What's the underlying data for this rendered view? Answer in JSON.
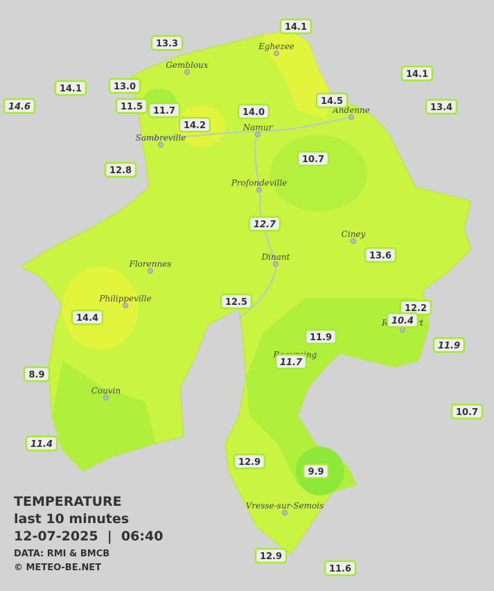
{
  "title": "TEMPERATURE",
  "subtitle": "last 10 minutes",
  "datetime": "12-07-2025  |  06:40",
  "source": "DATA: RMI & BMCB",
  "credit": "© METEO-BE.NET",
  "towns": [
    "Eghezee",
    "Gembloux",
    "Andenne",
    "Namur",
    "Sambreville",
    "Profondeville",
    "Ciney",
    "Dinant",
    "Florennes",
    "Philippeville",
    "Rochefort",
    "Beauraing",
    "Couvin",
    "Vresse-sur-Semois"
  ],
  "stations": [
    {
      "label": "14.1",
      "italic": false
    },
    {
      "label": "13.3",
      "italic": false
    },
    {
      "label": "14.1",
      "italic": false
    },
    {
      "label": "14.1",
      "italic": false
    },
    {
      "label": "13.0",
      "italic": false
    },
    {
      "label": "14.6",
      "italic": true
    },
    {
      "label": "13.4",
      "italic": false
    },
    {
      "label": "14.5",
      "italic": false
    },
    {
      "label": "11.5",
      "italic": false
    },
    {
      "label": "11.7",
      "italic": false
    },
    {
      "label": "14.0",
      "italic": false
    },
    {
      "label": "14.2",
      "italic": false
    },
    {
      "label": "10.7",
      "italic": false
    },
    {
      "label": "12.8",
      "italic": false
    },
    {
      "label": "12.7",
      "italic": true
    },
    {
      "label": "13.6",
      "italic": false
    },
    {
      "label": "12.5",
      "italic": false
    },
    {
      "label": "12.2",
      "italic": false
    },
    {
      "label": "14.4",
      "italic": false
    },
    {
      "label": "10.4",
      "italic": true
    },
    {
      "label": "11.9",
      "italic": false
    },
    {
      "label": "11.9",
      "italic": true
    },
    {
      "label": "11.7",
      "italic": true
    },
    {
      "label": "8.9",
      "italic": false
    },
    {
      "label": "10.7",
      "italic": false
    },
    {
      "label": "11.4",
      "italic": true
    },
    {
      "label": "12.9",
      "italic": false
    },
    {
      "label": "9.9",
      "italic": false
    },
    {
      "label": "12.9",
      "italic": false
    },
    {
      "label": "11.6",
      "italic": false
    }
  ]
}
